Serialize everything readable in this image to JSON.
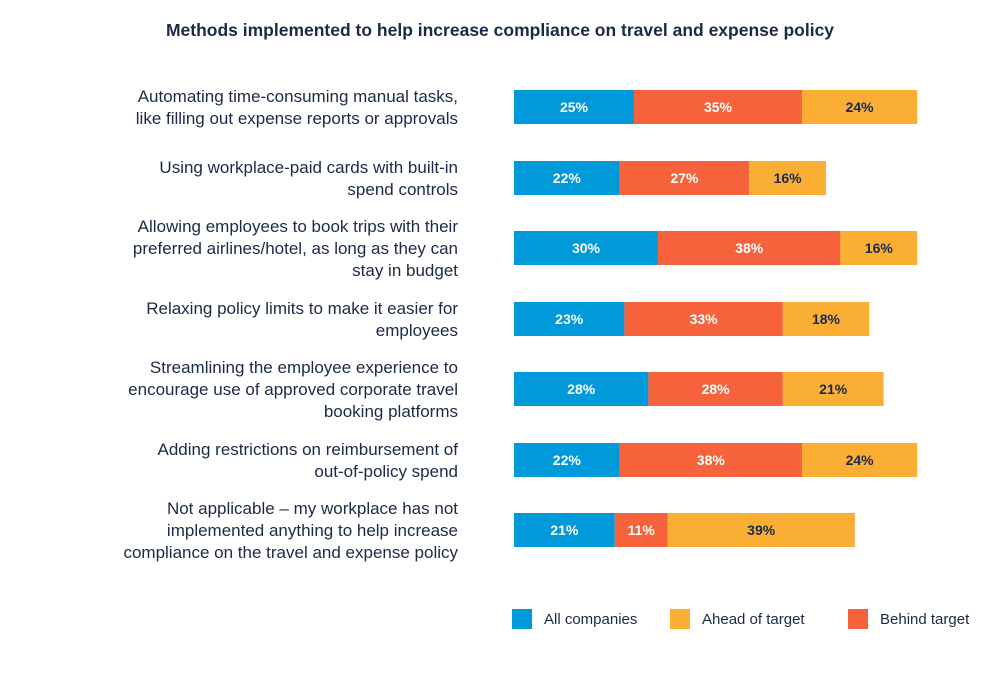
{
  "chart_data": {
    "type": "bar",
    "stacked": true,
    "orientation": "horizontal",
    "title": "Methods implemented to help increase compliance on travel and expense policy",
    "xlabel": "",
    "ylabel": "",
    "grid": false,
    "legend_position": "bottom-right",
    "categories": [
      "Automating time-consuming manual tasks,\nlike filling out expense reports or approvals",
      "Using workplace-paid cards with built-in\nspend controls",
      "Allowing employees to book trips with their\npreferred airlines/hotel, as long as they can\nstay in budget",
      "Relaxing policy limits to make it easier for\nemployees",
      "Streamlining the employee experience to\nencourage use of approved corporate travel\nbooking platforms",
      "Adding restrictions on reimbursement of\nout-of-policy spend",
      "Not applicable – my workplace has not\nimplemented anything to help increase\ncompliance on the travel and expense policy"
    ],
    "series": [
      {
        "name": "All companies",
        "color": "#0099da",
        "label_color": "#ffffff",
        "values": [
          25,
          22,
          30,
          23,
          28,
          22,
          21
        ]
      },
      {
        "name": "Behind target",
        "color": "#f5623b",
        "label_color": "#ffffff",
        "values": [
          35,
          27,
          38,
          33,
          28,
          38,
          11
        ]
      },
      {
        "name": "Ahead of target",
        "color": "#fbae34",
        "label_color": "#1b2a47",
        "values": [
          24,
          16,
          16,
          18,
          21,
          24,
          39
        ]
      }
    ],
    "value_suffix": "%",
    "legend_order": [
      "All companies",
      "Ahead of target",
      "Behind target"
    ]
  }
}
